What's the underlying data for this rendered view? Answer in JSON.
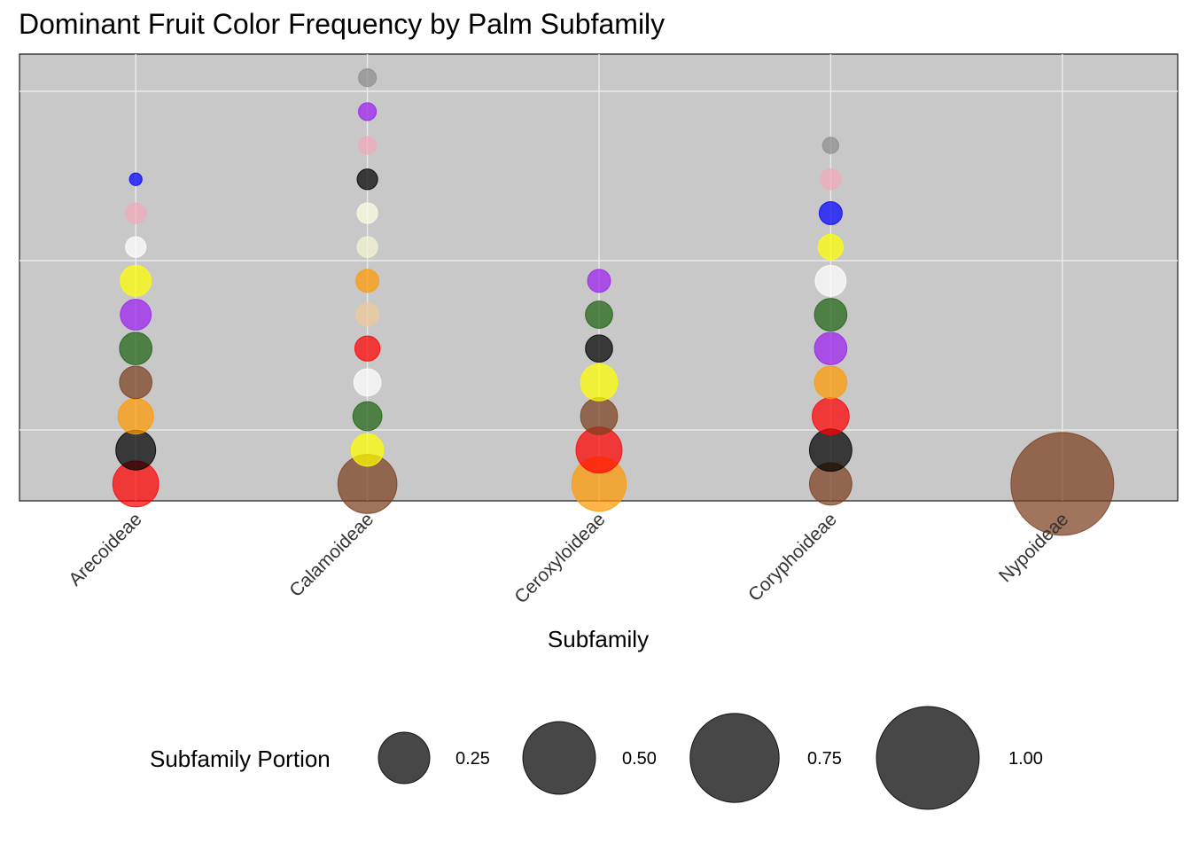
{
  "chart_data": {
    "type": "scatter",
    "title": "Dominant Fruit Color Frequency by Palm Subfamily",
    "xlabel": "Subfamily",
    "ylabel": "",
    "categories": [
      "Arecoideae",
      "Calamoideae",
      "Ceroxyloideae",
      "Coryphoideae",
      "Nypoideae"
    ],
    "y_note": "rank of color within subfamily (1 = most frequent)",
    "ylim": [
      0.5,
      13.7
    ],
    "grid": true,
    "legend": {
      "title": "Subfamily Portion",
      "position": "bottom",
      "values": [
        0.25,
        0.5,
        0.75,
        1.0
      ],
      "labels": [
        "0.25",
        "0.50",
        "0.75",
        "1.00"
      ]
    },
    "colors": {
      "red": "#ff0000",
      "black": "#000000",
      "orange": "#ff9900",
      "brown": "#7b3f1e",
      "green": "#1e6414",
      "purple": "#9b1ef0",
      "yellow": "#ffff00",
      "white": "#ffffff",
      "pink": "#f2a8b8",
      "blue": "#0000ff",
      "cream": "#fffde2",
      "tan": "#f0c896",
      "ivory": "#f5f5d2",
      "grey": "#8c8c8c"
    },
    "series": [
      {
        "subfamily": "Arecoideae",
        "points": [
          {
            "rank": 1,
            "color": "red",
            "portion": 0.2
          },
          {
            "rank": 2,
            "color": "black",
            "portion": 0.15
          },
          {
            "rank": 3,
            "color": "orange",
            "portion": 0.12
          },
          {
            "rank": 4,
            "color": "brown",
            "portion": 0.1
          },
          {
            "rank": 5,
            "color": "green",
            "portion": 0.1
          },
          {
            "rank": 6,
            "color": "purple",
            "portion": 0.09
          },
          {
            "rank": 7,
            "color": "yellow",
            "portion": 0.09
          },
          {
            "rank": 8,
            "color": "white",
            "portion": 0.04
          },
          {
            "rank": 9,
            "color": "pink",
            "portion": 0.04
          },
          {
            "rank": 10,
            "color": "blue",
            "portion": 0.015
          }
        ]
      },
      {
        "subfamily": "Calamoideae",
        "points": [
          {
            "rank": 1,
            "color": "brown",
            "portion": 0.33
          },
          {
            "rank": 2,
            "color": "yellow",
            "portion": 0.1
          },
          {
            "rank": 3,
            "color": "green",
            "portion": 0.08
          },
          {
            "rank": 4,
            "color": "white",
            "portion": 0.07
          },
          {
            "rank": 5,
            "color": "red",
            "portion": 0.06
          },
          {
            "rank": 6,
            "color": "tan",
            "portion": 0.05
          },
          {
            "rank": 7,
            "color": "orange",
            "portion": 0.05
          },
          {
            "rank": 8,
            "color": "ivory",
            "portion": 0.04
          },
          {
            "rank": 9,
            "color": "cream",
            "portion": 0.04
          },
          {
            "rank": 10,
            "color": "black",
            "portion": 0.04
          },
          {
            "rank": 11,
            "color": "pink",
            "portion": 0.03
          },
          {
            "rank": 12,
            "color": "purple",
            "portion": 0.03
          },
          {
            "rank": 13,
            "color": "grey",
            "portion": 0.03
          }
        ]
      },
      {
        "subfamily": "Ceroxyloideae",
        "points": [
          {
            "rank": 1,
            "color": "orange",
            "portion": 0.28
          },
          {
            "rank": 2,
            "color": "red",
            "portion": 0.2
          },
          {
            "rank": 3,
            "color": "brown",
            "portion": 0.13
          },
          {
            "rank": 4,
            "color": "yellow",
            "portion": 0.13
          },
          {
            "rank": 5,
            "color": "black",
            "portion": 0.07
          },
          {
            "rank": 6,
            "color": "green",
            "portion": 0.07
          },
          {
            "rank": 7,
            "color": "purple",
            "portion": 0.05
          }
        ]
      },
      {
        "subfamily": "Coryphoideae",
        "points": [
          {
            "rank": 1,
            "color": "brown",
            "portion": 0.17
          },
          {
            "rank": 2,
            "color": "black",
            "portion": 0.17
          },
          {
            "rank": 3,
            "color": "red",
            "portion": 0.13
          },
          {
            "rank": 4,
            "color": "orange",
            "portion": 0.1
          },
          {
            "rank": 5,
            "color": "purple",
            "portion": 0.1
          },
          {
            "rank": 6,
            "color": "green",
            "portion": 0.1
          },
          {
            "rank": 7,
            "color": "white",
            "portion": 0.09
          },
          {
            "rank": 8,
            "color": "yellow",
            "portion": 0.06
          },
          {
            "rank": 9,
            "color": "blue",
            "portion": 0.05
          },
          {
            "rank": 10,
            "color": "pink",
            "portion": 0.04
          },
          {
            "rank": 11,
            "color": "grey",
            "portion": 0.025
          }
        ]
      },
      {
        "subfamily": "Nypoideae",
        "points": [
          {
            "rank": 1,
            "color": "brown",
            "portion": 1.0
          }
        ]
      }
    ]
  }
}
